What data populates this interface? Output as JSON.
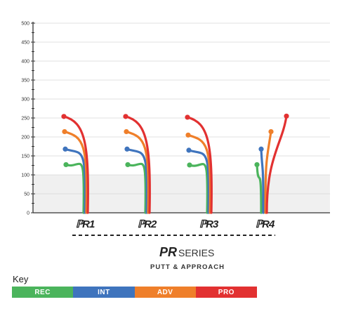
{
  "chart_data": {
    "type": "line",
    "title": "",
    "xlabel": "",
    "ylabel": "",
    "ylim": [
      0,
      500
    ],
    "y_ticks": [
      0,
      25,
      50,
      75,
      100,
      125,
      150,
      175,
      200,
      225,
      250,
      275,
      300,
      325,
      350,
      375,
      400,
      425,
      450,
      475,
      500
    ],
    "y_tick_labels": [
      "0",
      "50",
      "100",
      "150",
      "200",
      "250",
      "300",
      "350",
      "400",
      "450",
      "500"
    ],
    "grid": "horizontal",
    "shaded_band": [
      0,
      100
    ],
    "categories": [
      "R1",
      "R2",
      "R3",
      "R4"
    ],
    "category_labels": [
      "ℙR1",
      "ℙR2",
      "ℙR3",
      "ℙR4"
    ],
    "series": [
      {
        "name": "REC",
        "color": "#4bb45c",
        "values": [
          127,
          127,
          126,
          127
        ]
      },
      {
        "name": "INT",
        "color": "#3f74bd",
        "values": [
          168,
          168,
          165,
          168
        ]
      },
      {
        "name": "ADV",
        "color": "#ef7f2a",
        "values": [
          214,
          214,
          205,
          214
        ]
      },
      {
        "name": "PRO",
        "color": "#e23131",
        "values": [
          254,
          254,
          252,
          255
        ]
      }
    ]
  },
  "brand": {
    "mark": "PR",
    "series_word": "SERIES",
    "subtitle": "PUTT & APPROACH"
  },
  "key": {
    "title": "Key",
    "items": [
      {
        "label": "REC",
        "color": "#4bb45c"
      },
      {
        "label": "INT",
        "color": "#3f74bd"
      },
      {
        "label": "ADV",
        "color": "#ef7f2a"
      },
      {
        "label": "PRO",
        "color": "#e23131"
      }
    ]
  }
}
